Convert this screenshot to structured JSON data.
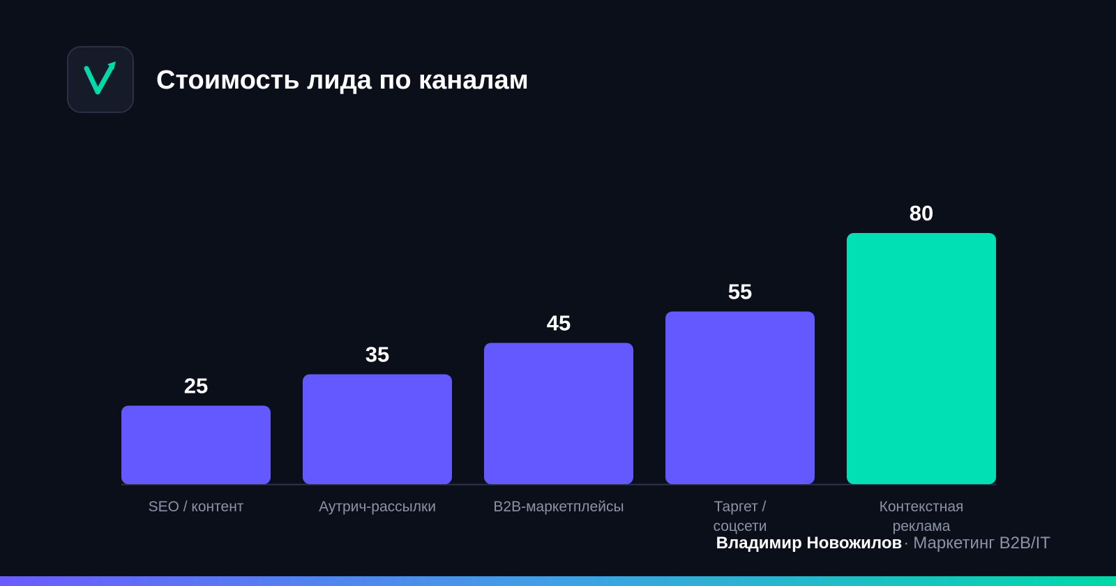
{
  "header": {
    "logo_icon": "checkmark-arrow-icon",
    "title": "Стоимость лида по каналам"
  },
  "colors": {
    "background": "#0b0f19",
    "bar_default": "#6359ff",
    "bar_highlight": "#00e0b4",
    "logo_accent": "#00d9a8"
  },
  "chart_data": {
    "type": "bar",
    "categories": [
      [
        "SEO / контент"
      ],
      [
        "Аутрич-рассылки"
      ],
      [
        "B2B-маркетплейсы"
      ],
      [
        "Таргет /",
        "соцсети"
      ],
      [
        "Контекстная",
        "реклама"
      ]
    ],
    "values": [
      25,
      35,
      45,
      55,
      80
    ],
    "highlight_index": 4,
    "data_labels": true,
    "grid": false,
    "y_axis_visible": false
  },
  "footer": {
    "author": "Владимир Новожилов",
    "separator": "·",
    "role": "Маркетинг B2B/IT"
  }
}
